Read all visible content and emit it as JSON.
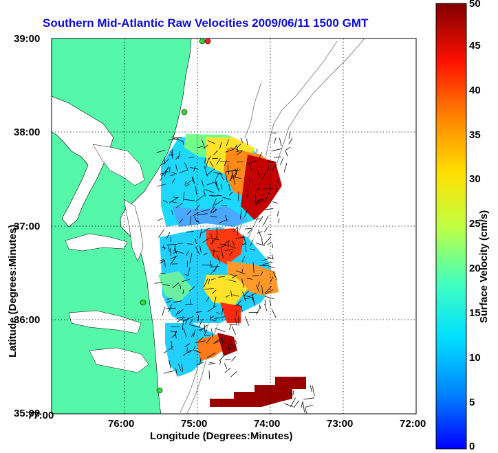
{
  "title": "Southern Mid-Atlantic Raw Velocities 2009/06/11 1500 GMT",
  "xlabel": "Longitude (Degrees:Minutes)",
  "ylabel": "Latitude (Degrees:Minutes)",
  "colorbar": {
    "label": "Surface Velocity (cm/s)",
    "ticks": [
      "0",
      "5",
      "10",
      "15",
      "20",
      "25",
      "30",
      "35",
      "40",
      "45",
      "50"
    ]
  },
  "x_ticks": [
    "77:00",
    "76:00",
    "75:00",
    "74:00",
    "73:00",
    "72:00"
  ],
  "y_ticks": [
    "39:00",
    "38:00",
    "37:00",
    "36:00",
    "35:00"
  ],
  "colors": {
    "land": "#55f7a8",
    "title": "#0b0bd6",
    "contour": "#8a8a8a"
  }
}
